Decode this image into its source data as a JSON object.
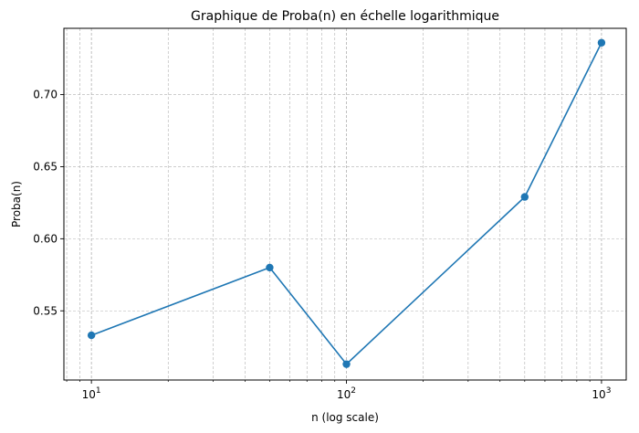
{
  "chart_data": {
    "type": "line",
    "title": "Graphique de Proba(n) en échelle logarithmique",
    "xlabel": "n (log scale)",
    "ylabel": "Proba(n)",
    "x_scale": "log",
    "xlim": [
      7.8,
      1250
    ],
    "ylim": [
      0.502,
      0.746
    ],
    "grid": true,
    "grid_style": "dashed",
    "line_color": "#1f77b4",
    "marker": "circle",
    "x_ticks": [
      {
        "value": 10,
        "base": "10",
        "exp": "1"
      },
      {
        "value": 100,
        "base": "10",
        "exp": "2"
      },
      {
        "value": 1000,
        "base": "10",
        "exp": "3"
      }
    ],
    "y_ticks": [
      {
        "value": 0.55,
        "label": "0.55"
      },
      {
        "value": 0.6,
        "label": "0.60"
      },
      {
        "value": 0.65,
        "label": "0.65"
      },
      {
        "value": 0.7,
        "label": "0.70"
      }
    ],
    "series": [
      {
        "x": [
          10,
          50,
          100,
          500,
          1000
        ],
        "y": [
          0.533,
          0.58,
          0.513,
          0.629,
          0.736
        ]
      }
    ]
  }
}
